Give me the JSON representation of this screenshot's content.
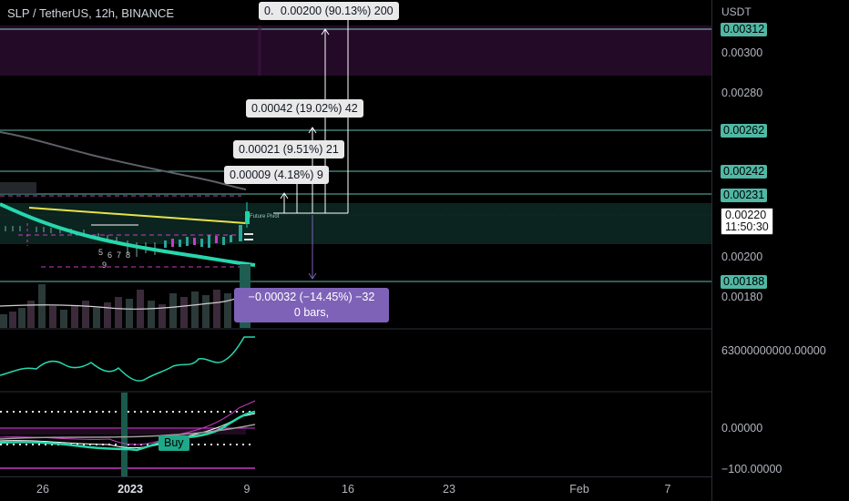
{
  "header": {
    "symbol_title": "SLP / TetherUS, 12h, BINANCE"
  },
  "price_axis": {
    "unit": "USDT",
    "labels": [
      "0.00300",
      "0.00280",
      "0.00200",
      "0.00180"
    ],
    "level_badges": [
      "0.00312",
      "0.00262",
      "0.00242",
      "0.00231",
      "0.00188"
    ],
    "current_price": "0.00220",
    "countdown": "11:50:30",
    "volume_pane_label": "63000000000.00000",
    "osc_labels": [
      "0.00000",
      "−100.00000"
    ]
  },
  "time_axis": {
    "labels": [
      "26",
      "2023",
      "9",
      "16",
      "23",
      "Feb",
      "7"
    ]
  },
  "measurements": {
    "m200": "0.00200 (90.13%) 200",
    "m200_prefix": "0.",
    "m42": "0.00042 (19.02%) 42",
    "m21": "0.00021 (9.51%) 21",
    "m9": "0.00009 (4.18%) 9",
    "down_line1": "−0.00032 (−14.45%) −32",
    "down_line2": "0 bars,"
  },
  "markers": {
    "buy": "Buy",
    "pivot": "Future Pivot",
    "wave_labels": [
      "5",
      "6",
      "7",
      "8",
      "9"
    ]
  },
  "colors": {
    "teal": "#26d7ad",
    "yellow": "#e7e24a",
    "magenta": "#c83bc4",
    "purple_band": "#2a0a2e",
    "measure_purple": "#7e62b8"
  }
}
